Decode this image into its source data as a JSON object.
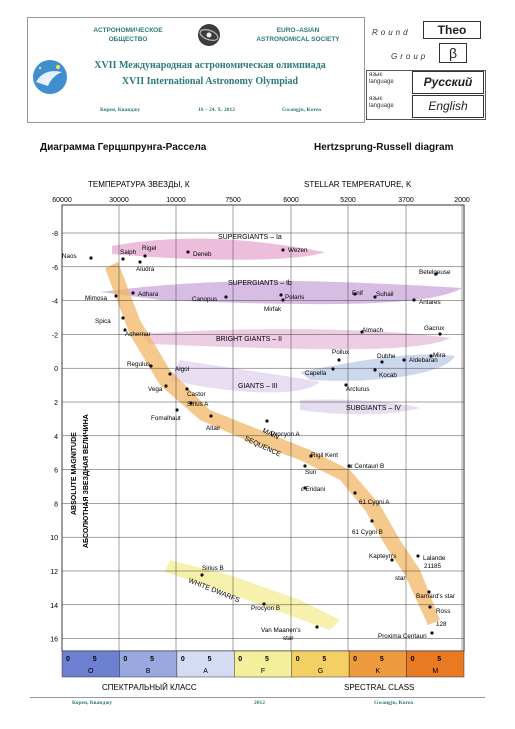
{
  "header": {
    "org_ru_line1": "АСТРОНОМИЧЕСКОЕ",
    "org_ru_line2": "ОБЩЕСТВО",
    "org_en_line1": "EURO–ASIAN",
    "org_en_line2": "ASTRONOMICAL SOCIETY",
    "olympiad_ru": "XVII Международная астрономическая олимпиада",
    "olympiad_en": "XVII International Astronomy Olympiad",
    "place_ru": "Корея, Кванджу",
    "dates": "16 – 24. X. 2012",
    "place_en": "Gwangju, Korea"
  },
  "round_box": {
    "round_label": "Round",
    "round_value": "Theo",
    "group_label": "Group",
    "group_value": "β",
    "lang_label_ru": "язык",
    "lang_label_en": "language",
    "lang_value_ru": "Русский",
    "lang_value_en": "English"
  },
  "titles": {
    "ru": "Диаграмма Герцшпрунга-Рассела",
    "en": "Hertzsprung-Russell diagram"
  },
  "diagram": {
    "temp_label_ru": "ТЕМПЕРАТУРА ЗВЕЗДЫ, К",
    "temp_label_en": "STELLAR TEMPERATURE, K",
    "temp_ticks": [
      "60000",
      "30000",
      "10000",
      "7500",
      "6000",
      "5200",
      "3700",
      "2000"
    ],
    "mag_ticks": [
      "-8",
      "-6",
      "-4",
      "-2",
      "0",
      "2",
      "4",
      "6",
      "8",
      "10",
      "12",
      "14",
      "16"
    ],
    "y_label_en": "ABSOLUTE MAGNITUDE",
    "y_label_ru": "АБСОЛЮТНАЯ ЗВЕЗДНАЯ ВЕЛИЧИНА",
    "spectral_ru": "СПЕКТРАЛЬНЫЙ КЛАСС",
    "spectral_en": "SPECTRAL CLASS",
    "spectral_sub": [
      "0",
      "5",
      "0",
      "5",
      "0",
      "5",
      "0",
      "5",
      "0",
      "5",
      "0",
      "5",
      "0",
      "5"
    ],
    "spectral_classes": [
      "O",
      "B",
      "A",
      "F",
      "G",
      "K",
      "M"
    ],
    "spectral_colors": [
      "#6d7fd0",
      "#9aa8e0",
      "#d5dbf2",
      "#f3ef9a",
      "#f4cf63",
      "#ee9a3e",
      "#e77a22"
    ],
    "regions": {
      "supergiants_1a": "SUPERGIANTS – Ia",
      "supergiants_1b": "SUPERGIANTS – Ib",
      "bright_giants": "BRIGHT GIANTS – II",
      "giants": "GIANTS – III",
      "subgiants": "SUBGIANTS – IV",
      "main_seq_1": "MAIN",
      "main_seq_2": "SEQUENCE",
      "white_dwarfs": "WHITE DWARFS"
    },
    "stars": [
      {
        "name": "Naos"
      },
      {
        "name": "Saiph"
      },
      {
        "name": "Rigel"
      },
      {
        "name": "Aludra"
      },
      {
        "name": "Deneb"
      },
      {
        "name": "Wezen"
      },
      {
        "name": "Betelgeuse"
      },
      {
        "name": "Mimosa"
      },
      {
        "name": "Adhara"
      },
      {
        "name": "Canopus"
      },
      {
        "name": "Mirfak"
      },
      {
        "name": "Polaris"
      },
      {
        "name": "Enif"
      },
      {
        "name": "Suhail"
      },
      {
        "name": "Antares"
      },
      {
        "name": "Spica"
      },
      {
        "name": "Achernar"
      },
      {
        "name": "Almach"
      },
      {
        "name": "Gacrux"
      },
      {
        "name": "Pollux"
      },
      {
        "name": "Dubhe"
      },
      {
        "name": "Aldebaran"
      },
      {
        "name": "Mira"
      },
      {
        "name": "Regulus"
      },
      {
        "name": "Algol"
      },
      {
        "name": "Capella"
      },
      {
        "name": "Kocab"
      },
      {
        "name": "Vega"
      },
      {
        "name": "Castor"
      },
      {
        "name": "Sirius A"
      },
      {
        "name": "Arcturus"
      },
      {
        "name": "Fomalhaut"
      },
      {
        "name": "Altair"
      },
      {
        "name": "Procyon A"
      },
      {
        "name": "Rigil Kent"
      },
      {
        "name": "Sun"
      },
      {
        "name": "α Centauri B"
      },
      {
        "name": "ε Eridani"
      },
      {
        "name": "61 Cygni A"
      },
      {
        "name": "61 Cygni B"
      },
      {
        "name": "Kapteyn's"
      },
      {
        "name": "star"
      },
      {
        "name": "Lalande"
      },
      {
        "name": "21185"
      },
      {
        "name": "Sirius B"
      },
      {
        "name": "Barnard's star"
      },
      {
        "name": "Ross"
      },
      {
        "name": "128"
      },
      {
        "name": "Procyon B"
      },
      {
        "name": "Van Maanen's"
      },
      {
        "name": "star"
      },
      {
        "name": "Proxima Centauri"
      }
    ]
  },
  "footer": {
    "place_ru": "Корея, Кванджу",
    "year": "2012",
    "place_en": "Gwangju, Korea"
  }
}
